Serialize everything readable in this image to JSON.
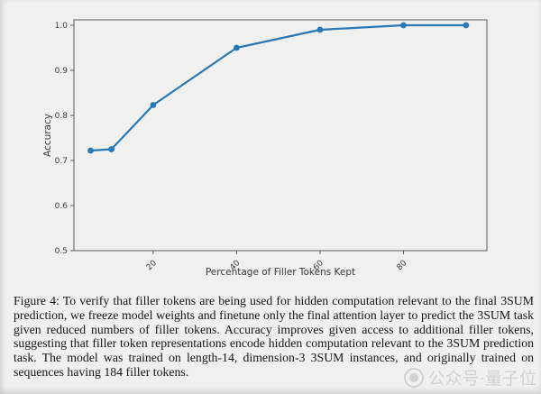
{
  "chart_data": {
    "type": "line",
    "x": [
      5,
      10,
      20,
      40,
      60,
      80,
      95
    ],
    "y": [
      0.722,
      0.725,
      0.823,
      0.95,
      0.99,
      1.0,
      1.0
    ],
    "title": "",
    "xlabel": "Percentage of Filler Tokens Kept",
    "ylabel": "Accuracy",
    "x_ticks": [
      20,
      40,
      60,
      80
    ],
    "y_ticks": [
      0.5,
      0.6,
      0.7,
      0.8,
      0.9,
      1.0
    ],
    "xlim": [
      1,
      100
    ],
    "ylim": [
      0.5,
      1.012
    ],
    "x_tick_rotation": 45,
    "grid": false,
    "legend": null,
    "line_color": "#2878b5",
    "marker": "circle"
  },
  "caption": {
    "label": "Figure 4:",
    "text": "To verify that filler tokens are being used for hidden computation relevant to the final 3SUM prediction, we freeze model weights and finetune only the final attention layer to predict the 3SUM task given reduced numbers of filler tokens. Accuracy improves given access to additional filler tokens, suggesting that filler token representations encode hidden computation relevant to the 3SUM prediction task. The model was trained on length-14, dimension-3 3SUM instances, and originally trained on sequences having 184 filler tokens."
  },
  "watermark": {
    "text": "公众号·量子位"
  },
  "colors": {
    "background": "#f0f1ef",
    "line": "#2878b5",
    "axis": "#5a5a5a",
    "tick_text": "#3a3a3a",
    "caption_text": "#141414"
  }
}
